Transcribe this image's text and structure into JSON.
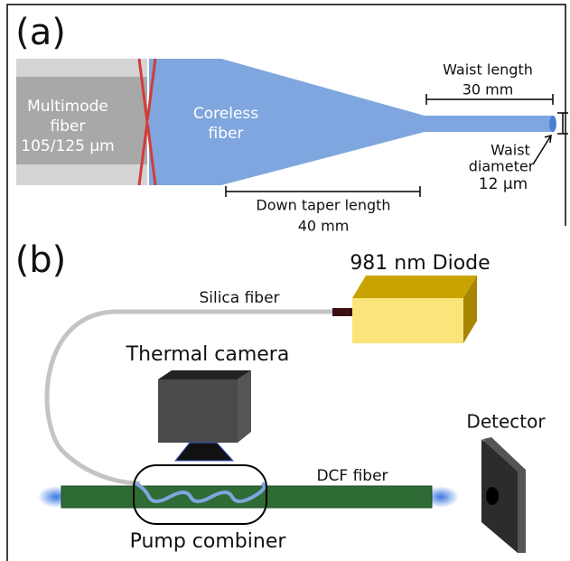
{
  "panel_a": {
    "label": "(a)",
    "multimode_fiber": [
      "Multimode",
      "fiber",
      "105/125 μm"
    ],
    "coreless_fiber": [
      "Coreless",
      "fiber"
    ],
    "waist_length": [
      "Waist length",
      "30 mm"
    ],
    "waist_diameter": [
      "Waist",
      "diameter",
      "12 μm"
    ],
    "down_taper_length": [
      "Down taper length",
      "40 mm"
    ]
  },
  "panel_b": {
    "label": "(b)",
    "diode": "981 nm Diode",
    "silica_fiber": "Silica fiber",
    "thermal_camera": "Thermal camera",
    "detector": "Detector",
    "dcf_fiber": "DCF fiber",
    "pump_combiner": "Pump combiner"
  }
}
